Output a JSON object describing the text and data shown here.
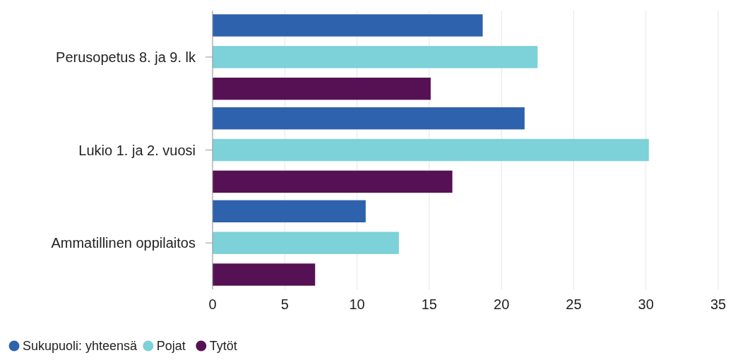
{
  "chart_data": {
    "type": "bar",
    "orientation": "horizontal",
    "categories": [
      "Perusopetus 8. ja 9. lk",
      "Lukio 1. ja 2. vuosi",
      "Ammatillinen oppilaitos"
    ],
    "series": [
      {
        "name": "Sukupuoli: yhteensä",
        "color": "#2e62ad",
        "values": [
          18.7,
          21.6,
          10.6
        ]
      },
      {
        "name": "Pojat",
        "color": "#7dd1d9",
        "values": [
          22.5,
          30.2,
          12.9
        ]
      },
      {
        "name": "Tytöt",
        "color": "#561154",
        "values": [
          15.1,
          16.6,
          7.1
        ]
      }
    ],
    "xlim": [
      0,
      35
    ],
    "xticks": [
      0,
      5,
      10,
      15,
      20,
      25,
      30,
      35
    ],
    "grid": "x",
    "legend": "bottom left"
  }
}
